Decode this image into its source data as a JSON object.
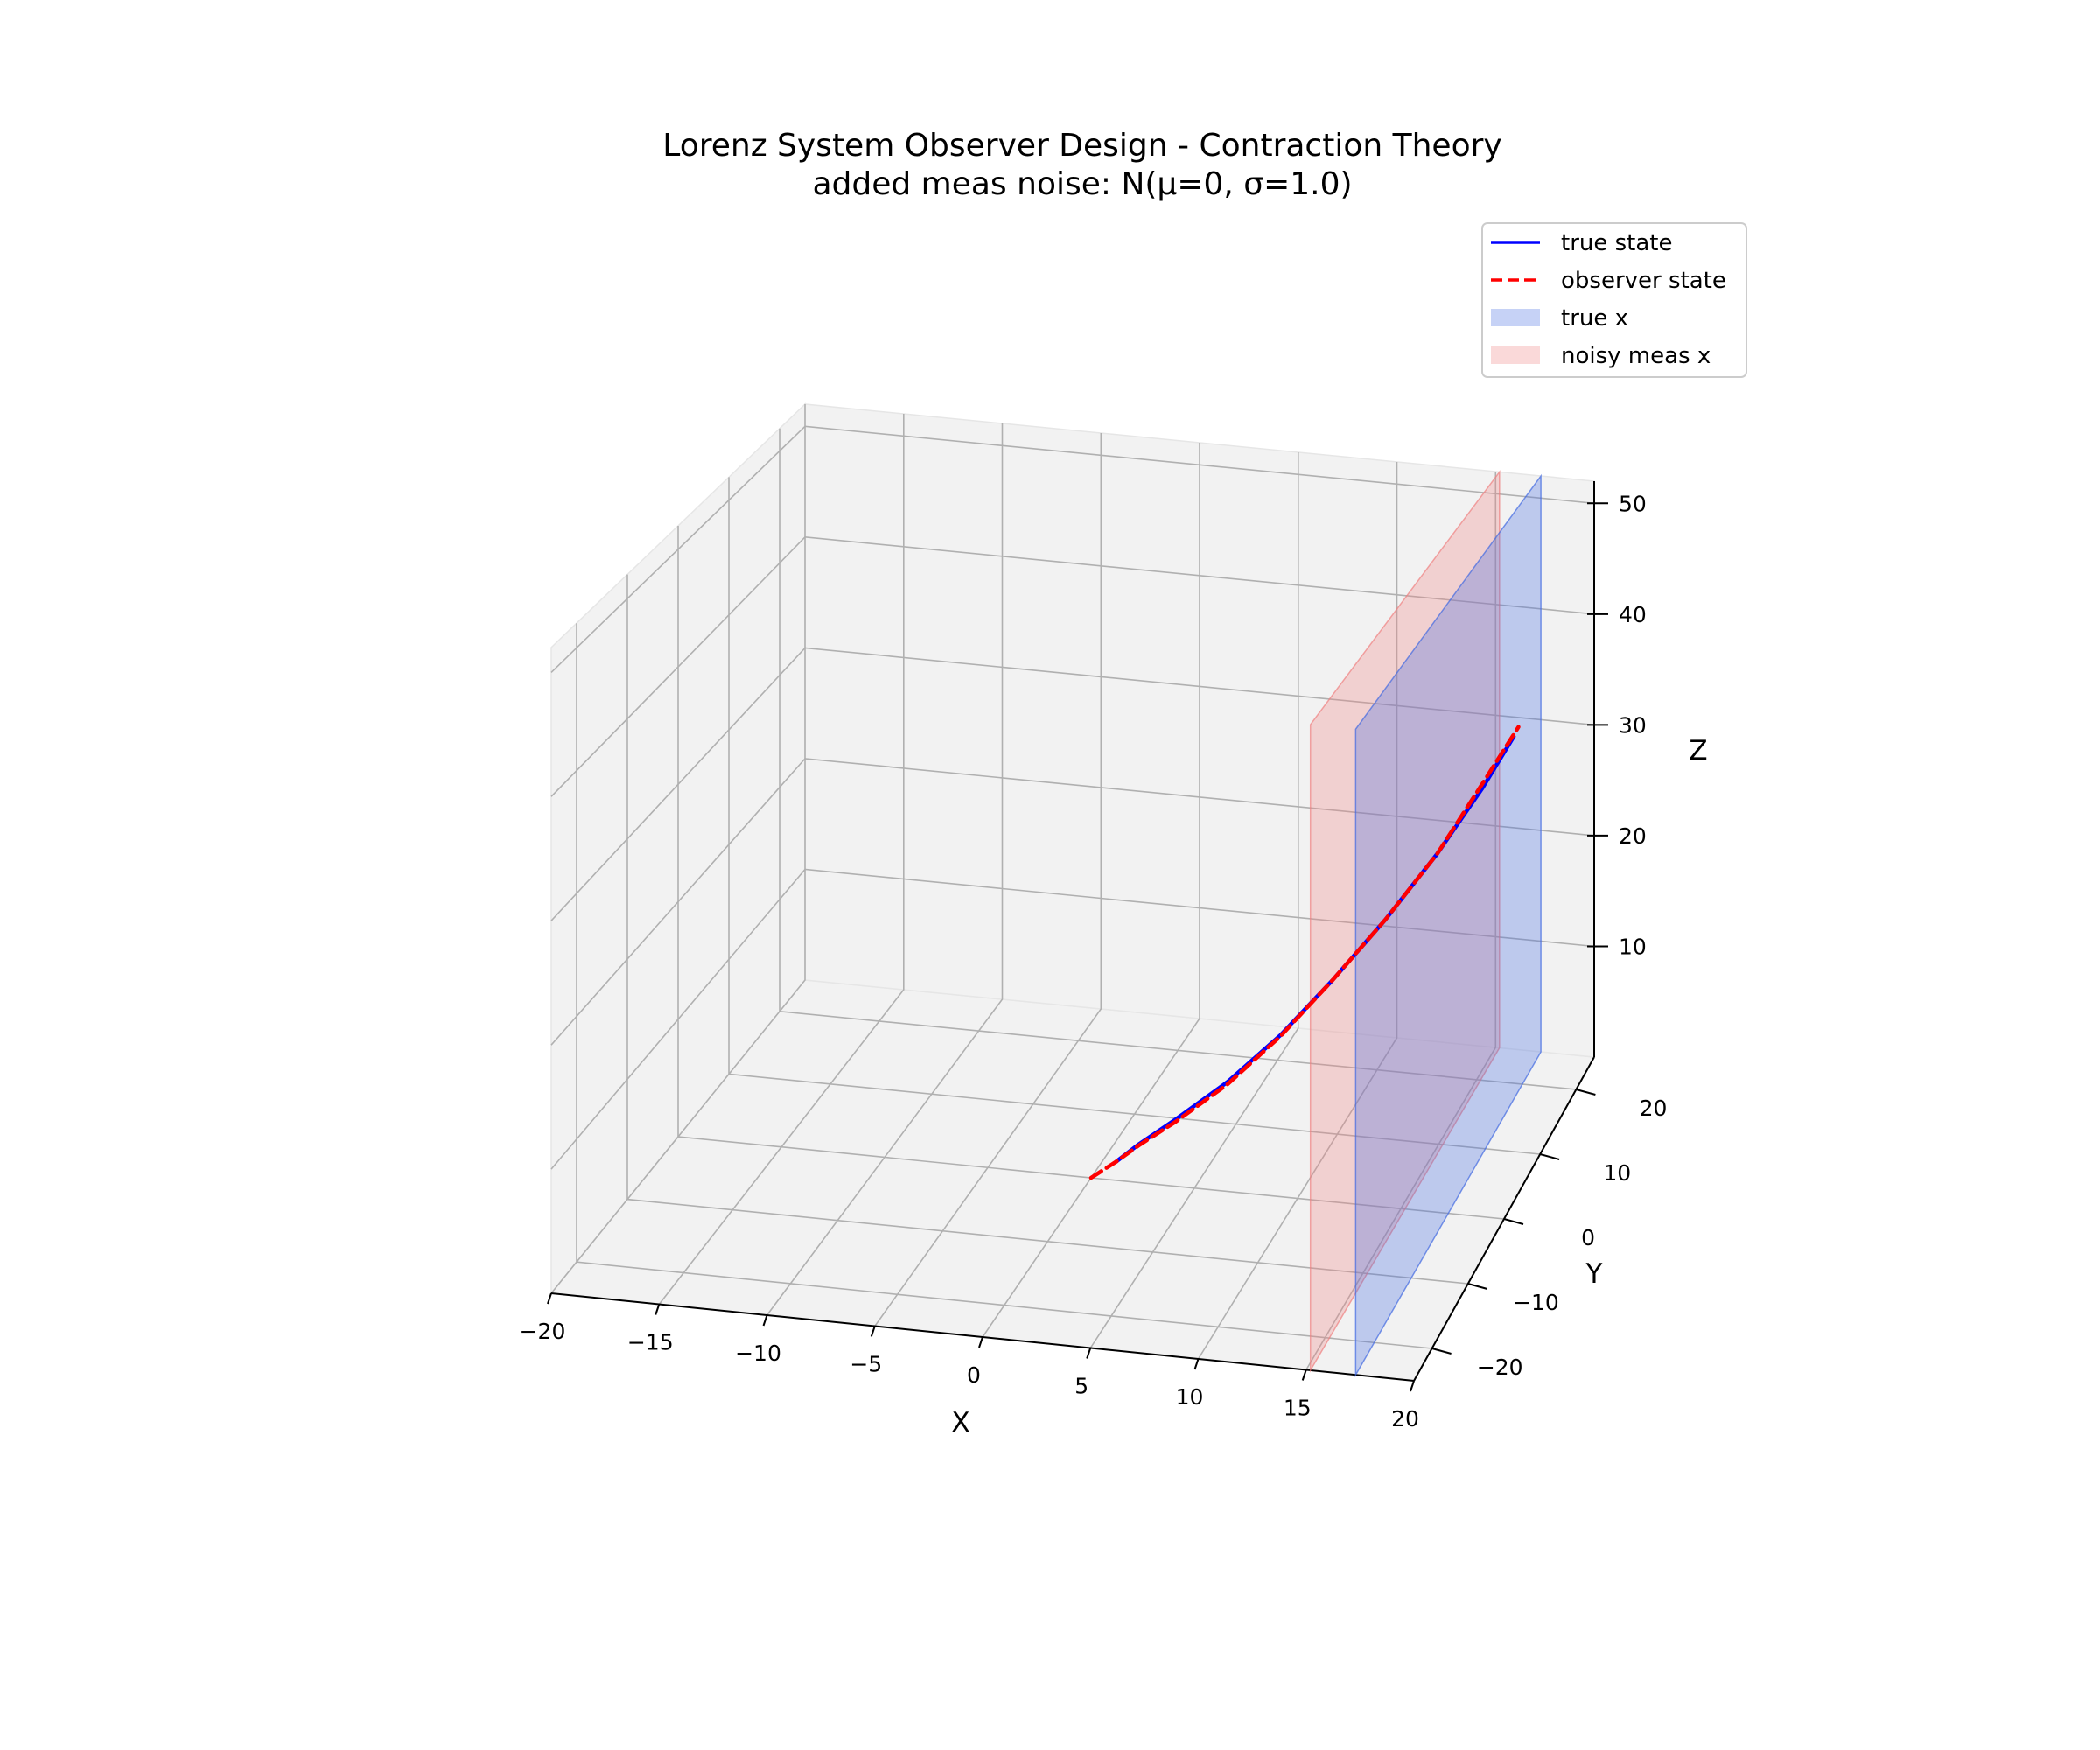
{
  "chart_data": {
    "type": "line3d",
    "title": "Lorenz System Observer Design - Contraction Theory",
    "subtitle": "added meas noise: N(μ=0, σ=1.0)",
    "xlabel": "X",
    "ylabel": "Y",
    "zlabel": "Z",
    "xlim": [
      -20,
      20
    ],
    "ylim": [
      -25,
      25
    ],
    "zlim": [
      0,
      52
    ],
    "xticks": [
      "−20",
      "−15",
      "−10",
      "−5",
      "0",
      "5",
      "10",
      "15",
      "20"
    ],
    "yticks": [
      "−20",
      "−10",
      "0",
      "10",
      "20"
    ],
    "zticks": [
      "10",
      "20",
      "30",
      "40",
      "50"
    ],
    "grid": true,
    "legend_position": "top-right",
    "legend": [
      {
        "label": "true state",
        "kind": "line",
        "color": "#0000ff"
      },
      {
        "label": "observer state",
        "kind": "dashed",
        "color": "#ff0000"
      },
      {
        "label": "true x",
        "kind": "patch",
        "color": "#4169e1"
      },
      {
        "label": "noisy meas x",
        "kind": "patch",
        "color": "#f08080"
      }
    ],
    "series": [
      {
        "name": "true state",
        "color": "#0000ff",
        "style": "solid",
        "points": [
          [
            1.0,
            1.0,
            1.0
          ],
          [
            2.0,
            1.5,
            2.4
          ],
          [
            3.5,
            3.0,
            4.0
          ],
          [
            5.5,
            5.5,
            6.2
          ],
          [
            7.5,
            8.5,
            9.0
          ],
          [
            9.5,
            11.5,
            12.6
          ],
          [
            11.5,
            14.5,
            16.6
          ],
          [
            13.5,
            17.5,
            21.2
          ],
          [
            15.2,
            20.5,
            25.8
          ],
          [
            16.4,
            22.5,
            29.6
          ]
        ]
      },
      {
        "name": "observer state",
        "color": "#ff0000",
        "style": "dashed",
        "points": [
          [
            0.0,
            0.0,
            0.0
          ],
          [
            1.0,
            1.0,
            1.0
          ],
          [
            2.0,
            1.5,
            2.3
          ],
          [
            3.5,
            3.0,
            3.8
          ],
          [
            5.5,
            5.5,
            6.0
          ],
          [
            7.5,
            8.5,
            8.9
          ],
          [
            9.5,
            11.5,
            12.6
          ],
          [
            11.5,
            14.5,
            16.6
          ],
          [
            13.5,
            17.5,
            21.2
          ],
          [
            15.2,
            20.5,
            26.2
          ],
          [
            16.6,
            22.7,
            30.4
          ]
        ]
      }
    ],
    "bands": [
      {
        "name": "true x",
        "color": "#4169e1",
        "x": 17.3,
        "y": [
          -25,
          25
        ],
        "z": [
          0,
          52
        ]
      },
      {
        "name": "noisy meas x",
        "color": "#f08080",
        "x": 15.2,
        "y": [
          -25,
          25
        ],
        "z": [
          0,
          52
        ]
      }
    ]
  }
}
